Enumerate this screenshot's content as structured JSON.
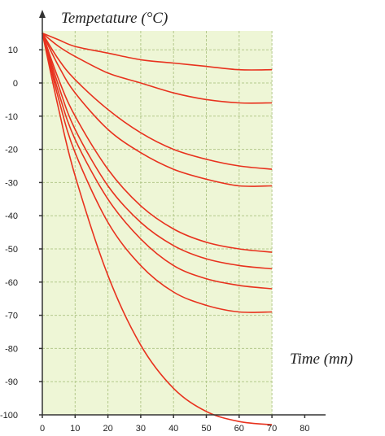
{
  "chart_data": {
    "type": "line",
    "title": "",
    "ylabel": "Tempetature (°C)",
    "xlabel": "Time (mn)",
    "xlim": [
      0,
      80
    ],
    "ylim": [
      -100,
      10
    ],
    "plot_xlim": [
      0,
      70
    ],
    "x_ticks": [
      0,
      10,
      20,
      30,
      40,
      50,
      60,
      70,
      80
    ],
    "y_ticks": [
      10,
      0,
      -10,
      -20,
      -30,
      -40,
      -50,
      -60,
      -70,
      -80,
      -90,
      -100
    ],
    "grid": true,
    "legend": "none",
    "colors": {
      "plot_bg": "#eef6d6",
      "grid": "#b4c98c",
      "curve": "#e8321e",
      "axis": "#333333"
    },
    "series": [
      {
        "x": [
          0,
          5,
          10,
          20,
          30,
          40,
          50,
          60,
          70
        ],
        "values": [
          15,
          13,
          11,
          9,
          7,
          6,
          5,
          4,
          4
        ]
      },
      {
        "x": [
          0,
          5,
          10,
          20,
          30,
          40,
          50,
          60,
          70
        ],
        "values": [
          15,
          11,
          8,
          3,
          0,
          -3,
          -5,
          -6,
          -6
        ]
      },
      {
        "x": [
          0,
          5,
          10,
          20,
          30,
          40,
          50,
          60,
          70
        ],
        "values": [
          15,
          7,
          1,
          -8,
          -15,
          -20,
          -23,
          -25,
          -26
        ]
      },
      {
        "x": [
          0,
          5,
          10,
          20,
          30,
          40,
          50,
          60,
          70
        ],
        "values": [
          15,
          5,
          -3,
          -14,
          -21,
          -26,
          -29,
          -31,
          -31
        ]
      },
      {
        "x": [
          0,
          5,
          10,
          20,
          30,
          40,
          50,
          60,
          70
        ],
        "values": [
          15,
          1,
          -10,
          -26,
          -37,
          -44,
          -48,
          -50,
          -51
        ]
      },
      {
        "x": [
          0,
          5,
          10,
          20,
          30,
          40,
          50,
          60,
          70
        ],
        "values": [
          15,
          -1,
          -14,
          -31,
          -42,
          -49,
          -53,
          -55,
          -56
        ]
      },
      {
        "x": [
          0,
          5,
          10,
          20,
          30,
          40,
          50,
          60,
          70
        ],
        "values": [
          15,
          -3,
          -17,
          -35,
          -47,
          -55,
          -59,
          -61,
          -62
        ]
      },
      {
        "x": [
          0,
          5,
          10,
          20,
          30,
          40,
          50,
          60,
          70
        ],
        "values": [
          15,
          -5,
          -21,
          -42,
          -55,
          -63,
          -67,
          -69,
          -69
        ]
      },
      {
        "x": [
          0,
          5,
          10,
          20,
          30,
          40,
          50,
          60,
          70
        ],
        "values": [
          15,
          -8,
          -28,
          -58,
          -79,
          -92,
          -99,
          -102,
          -103
        ]
      }
    ]
  }
}
